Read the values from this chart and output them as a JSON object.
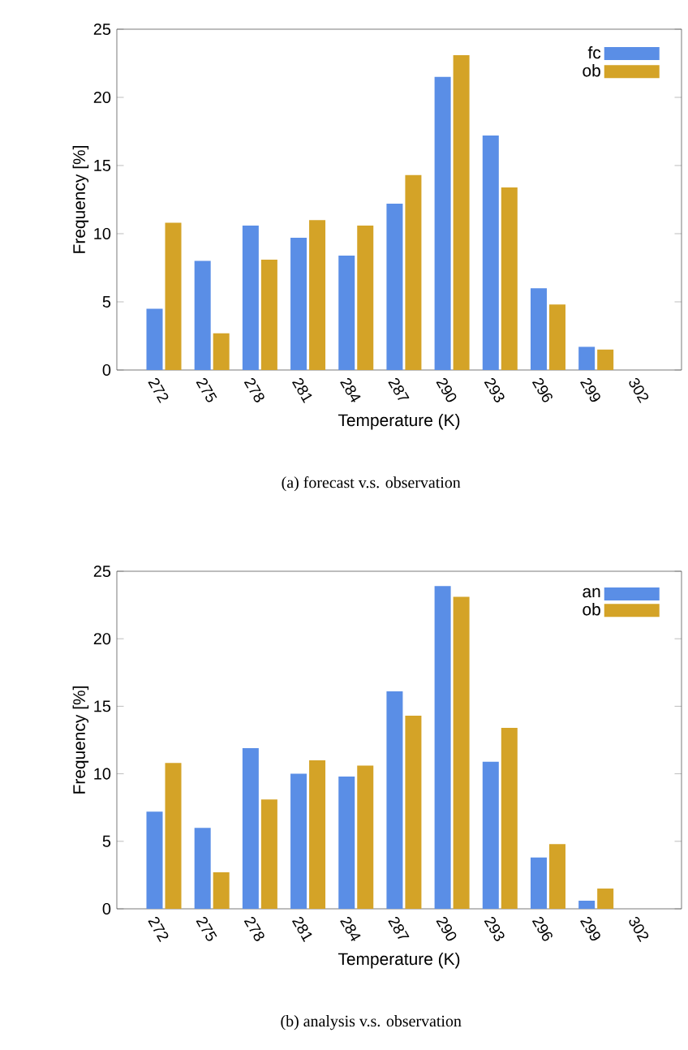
{
  "chart_data": [
    {
      "type": "bar",
      "title": "(a) forecast v.s. observation",
      "xlabel": "Temperature (K)",
      "ylabel": "Frequency [%]",
      "categories": [
        "272",
        "275",
        "278",
        "281",
        "284",
        "287",
        "290",
        "293",
        "296",
        "299",
        "302"
      ],
      "series": [
        {
          "name": "fc",
          "color": "#5a8ee6",
          "values": [
            4.5,
            8.0,
            10.6,
            9.7,
            8.4,
            12.2,
            21.5,
            17.2,
            6.0,
            1.7,
            0
          ]
        },
        {
          "name": "ob",
          "color": "#d4a327",
          "values": [
            10.8,
            2.7,
            8.1,
            11.0,
            10.6,
            14.3,
            23.1,
            13.4,
            4.8,
            1.5,
            0
          ]
        }
      ],
      "ylim": [
        0,
        25
      ],
      "yticks": [
        0,
        5,
        10,
        15,
        20,
        25
      ],
      "legend": "top right"
    },
    {
      "type": "bar",
      "title": "(b) analysis v.s. observation",
      "xlabel": "Temperature (K)",
      "ylabel": "Frequency [%]",
      "categories": [
        "272",
        "275",
        "278",
        "281",
        "284",
        "287",
        "290",
        "293",
        "296",
        "299",
        "302"
      ],
      "series": [
        {
          "name": "an",
          "color": "#5a8ee6",
          "values": [
            7.2,
            6.0,
            11.9,
            10.0,
            9.8,
            16.1,
            23.9,
            10.9,
            3.8,
            0.6,
            0
          ]
        },
        {
          "name": "ob",
          "color": "#d4a327",
          "values": [
            10.8,
            2.7,
            8.1,
            11.0,
            10.6,
            14.3,
            23.1,
            13.4,
            4.8,
            1.5,
            0
          ]
        }
      ],
      "ylim": [
        0,
        25
      ],
      "yticks": [
        0,
        5,
        10,
        15,
        20,
        25
      ],
      "legend": "top right"
    }
  ]
}
